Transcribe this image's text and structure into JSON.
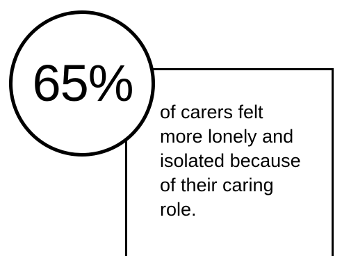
{
  "stat": {
    "value": "65%",
    "caption": "of carers felt\nmore lonely and\nisolated because\nof their caring\nrole."
  }
}
